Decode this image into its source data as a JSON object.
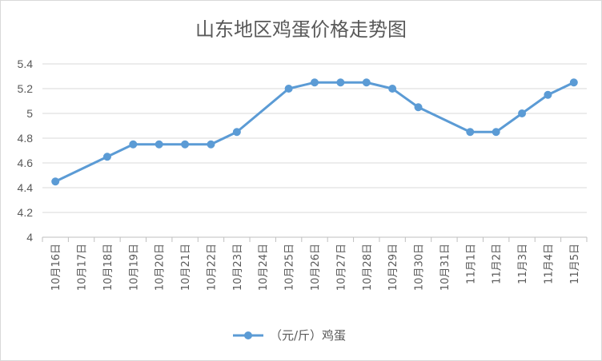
{
  "chart_data": {
    "type": "line",
    "title": "山东地区鸡蛋价格走势图",
    "xlabel": "",
    "ylabel": "",
    "ylim": [
      4,
      5.4
    ],
    "yticks": [
      "4",
      "4.2",
      "4.4",
      "4.6",
      "4.8",
      "5",
      "5.2",
      "5.4"
    ],
    "categories": [
      "10月16日",
      "10月17日",
      "10月18日",
      "10月19日",
      "10月20日",
      "10月21日",
      "10月22日",
      "10月23日",
      "10月24日",
      "10月25日",
      "10月26日",
      "10月27日",
      "10月28日",
      "10月29日",
      "10月30日",
      "10月31日",
      "11月1日",
      "11月2日",
      "11月3日",
      "11月4日",
      "11月5日"
    ],
    "series": [
      {
        "name": "（元/斤）鸡蛋",
        "color": "#5b9bd5",
        "values": [
          4.45,
          null,
          4.65,
          4.75,
          4.75,
          4.75,
          4.75,
          4.85,
          null,
          5.2,
          5.25,
          5.25,
          5.25,
          5.2,
          5.05,
          null,
          4.85,
          4.85,
          5.0,
          5.15,
          5.25
        ]
      }
    ],
    "grid": true,
    "legend": "bottom"
  }
}
